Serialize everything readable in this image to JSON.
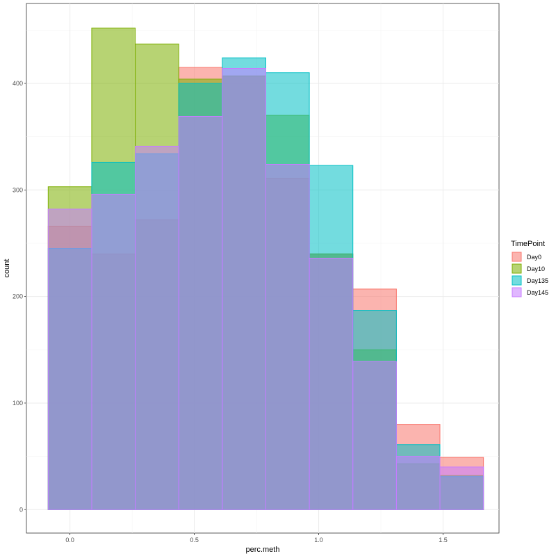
{
  "chart_data": {
    "type": "bar",
    "subtype": "overlapping-histogram",
    "xlabel": "perc.meth",
    "ylabel": "count",
    "xlim": [
      -0.175,
      1.725
    ],
    "ylim": [
      -22,
      475
    ],
    "x_ticks": [
      0.0,
      0.5,
      1.0,
      1.5
    ],
    "x_tick_labels": [
      "0.0",
      "0.5",
      "1.0",
      "1.5"
    ],
    "y_ticks": [
      0,
      100,
      200,
      300,
      400
    ],
    "y_tick_labels": [
      "0",
      "100",
      "200",
      "300",
      "400"
    ],
    "bin_edges": [
      -0.0875,
      0.0875,
      0.2625,
      0.4375,
      0.6125,
      0.7875,
      0.9625,
      1.1375,
      1.3125,
      1.4875,
      1.6625
    ],
    "grid": true,
    "legend_title": "TimePoint",
    "legend_position": "right",
    "series": [
      {
        "name": "Day0",
        "color": "#F8766D",
        "values": [
          266,
          240,
          272,
          415,
          407,
          311,
          240,
          207,
          80,
          49
        ]
      },
      {
        "name": "Day10",
        "color": "#7CAE00",
        "values": [
          303,
          452,
          437,
          404,
          407,
          370,
          240,
          150,
          43,
          32
        ]
      },
      {
        "name": "Day135",
        "color": "#00BFC4",
        "values": [
          245,
          326,
          334,
          400,
          424,
          410,
          323,
          187,
          61,
          31
        ]
      },
      {
        "name": "Day145",
        "color": "#C77CFF",
        "values": [
          282,
          296,
          341,
          369,
          414,
          324,
          236,
          139,
          50,
          40
        ]
      }
    ]
  }
}
